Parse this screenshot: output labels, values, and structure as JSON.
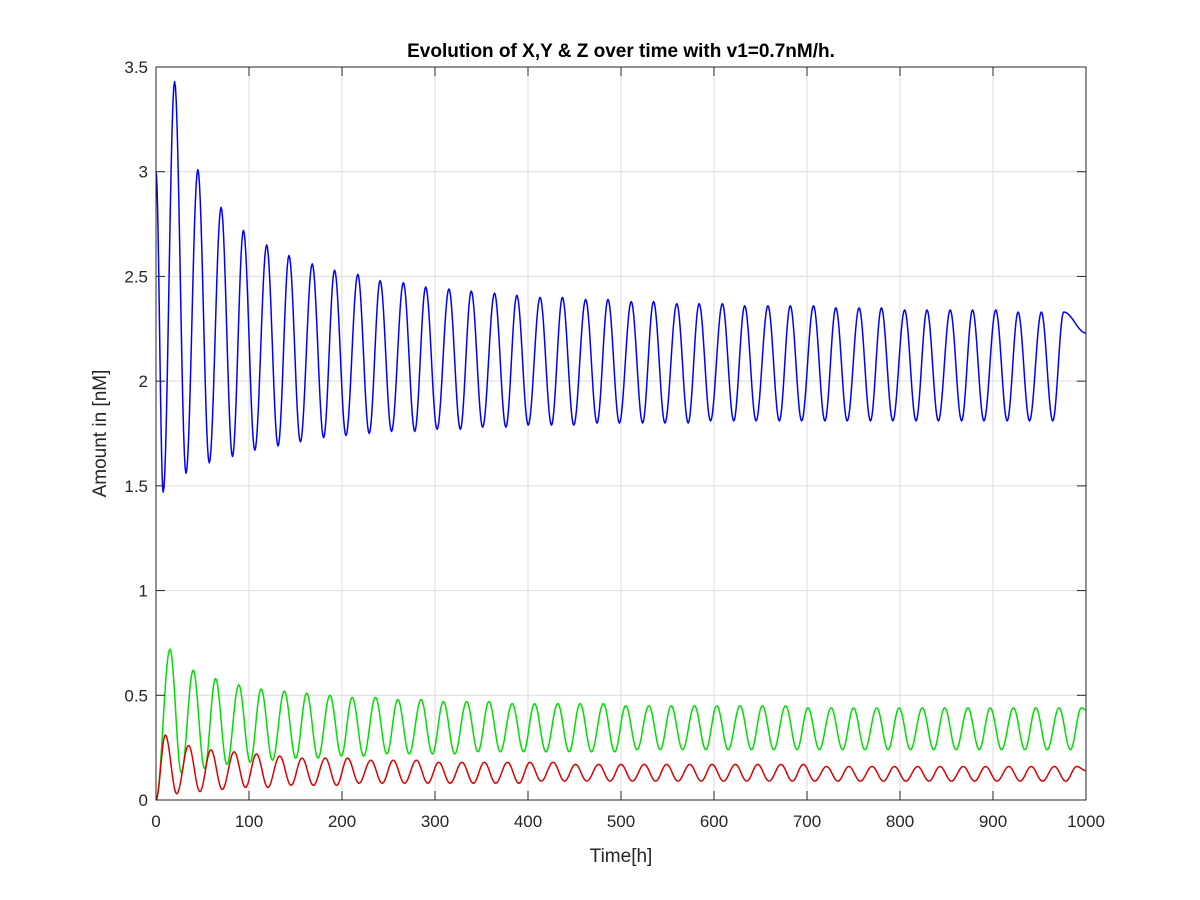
{
  "chart_data": {
    "type": "line",
    "title": "Evolution of X,Y & Z over time with v1=0.7nM/h.",
    "xlabel": "Time[h]",
    "ylabel": "Amount in [nM]",
    "xlim": [
      0,
      1000
    ],
    "ylim": [
      0,
      3.5
    ],
    "xticks": [
      0,
      100,
      200,
      300,
      400,
      500,
      600,
      700,
      800,
      900,
      1000
    ],
    "yticks": [
      0,
      0.5,
      1,
      1.5,
      2,
      2.5,
      3,
      3.5
    ],
    "xtick_labels": [
      "0",
      "100",
      "200",
      "300",
      "400",
      "500",
      "600",
      "700",
      "800",
      "900",
      "1000"
    ],
    "ytick_labels": [
      "0",
      "0.5",
      "1",
      "1.5",
      "2",
      "2.5",
      "3",
      "3.5"
    ],
    "grid": true,
    "legend": "none",
    "period_h": 24.5,
    "series": [
      {
        "color": "#0000ff",
        "start_value": 3.0,
        "first_min": 1.47,
        "peak_times": [
          20,
          45,
          70,
          94,
          119,
          143,
          168,
          192,
          217,
          241,
          266,
          290,
          315,
          339,
          364,
          388,
          413,
          437,
          462,
          486,
          511,
          535,
          560,
          584,
          609,
          633,
          658,
          682,
          707,
          731,
          756,
          780,
          805,
          829,
          854,
          878,
          903,
          927,
          952,
          976
        ],
        "peak_values": [
          3.43,
          3.01,
          2.83,
          2.72,
          2.65,
          2.6,
          2.56,
          2.53,
          2.51,
          2.48,
          2.47,
          2.45,
          2.44,
          2.43,
          2.42,
          2.41,
          2.4,
          2.4,
          2.39,
          2.39,
          2.38,
          2.38,
          2.37,
          2.37,
          2.37,
          2.36,
          2.36,
          2.36,
          2.36,
          2.35,
          2.35,
          2.35,
          2.34,
          2.34,
          2.34,
          2.34,
          2.34,
          2.33,
          2.33,
          2.33
        ],
        "trough_values": [
          1.56,
          1.61,
          1.64,
          1.67,
          1.69,
          1.71,
          1.73,
          1.74,
          1.75,
          1.76,
          1.76,
          1.77,
          1.77,
          1.78,
          1.78,
          1.79,
          1.79,
          1.79,
          1.8,
          1.8,
          1.8,
          1.8,
          1.8,
          1.81,
          1.81,
          1.81,
          1.81,
          1.81,
          1.81,
          1.81,
          1.81,
          1.81,
          1.81,
          1.81,
          1.81,
          1.81,
          1.81,
          1.81,
          1.81
        ],
        "end_value": 2.23
      },
      {
        "color": "#00dd00",
        "start_value": 0.0,
        "peak_times": [
          15,
          40,
          64,
          89,
          113,
          138,
          162,
          187,
          211,
          236,
          260,
          285,
          309,
          334,
          358,
          383,
          407,
          432,
          456,
          481,
          505,
          530,
          554,
          579,
          603,
          628,
          652,
          677,
          701,
          726,
          750,
          775,
          799,
          824,
          848,
          873,
          897,
          922,
          946,
          971,
          995
        ],
        "peak_values": [
          0.72,
          0.62,
          0.58,
          0.55,
          0.53,
          0.52,
          0.51,
          0.5,
          0.49,
          0.49,
          0.48,
          0.48,
          0.47,
          0.47,
          0.47,
          0.46,
          0.46,
          0.46,
          0.46,
          0.46,
          0.45,
          0.45,
          0.45,
          0.45,
          0.45,
          0.45,
          0.45,
          0.45,
          0.44,
          0.44,
          0.44,
          0.44,
          0.44,
          0.44,
          0.44,
          0.44,
          0.44,
          0.44,
          0.44,
          0.44,
          0.44
        ],
        "trough_values": [
          0.13,
          0.15,
          0.17,
          0.18,
          0.19,
          0.2,
          0.2,
          0.21,
          0.21,
          0.22,
          0.22,
          0.22,
          0.22,
          0.23,
          0.23,
          0.23,
          0.23,
          0.23,
          0.23,
          0.23,
          0.24,
          0.24,
          0.24,
          0.24,
          0.24,
          0.24,
          0.24,
          0.24,
          0.24,
          0.24,
          0.24,
          0.24,
          0.24,
          0.24,
          0.24,
          0.24,
          0.24,
          0.24,
          0.24,
          0.24
        ],
        "end_value": 0.43
      },
      {
        "color": "#dd0000",
        "start_value": 0.0,
        "peak_times": [
          10,
          35,
          59,
          84,
          108,
          133,
          157,
          182,
          206,
          231,
          255,
          280,
          304,
          329,
          353,
          378,
          402,
          427,
          451,
          476,
          500,
          525,
          549,
          574,
          598,
          623,
          647,
          672,
          696,
          721,
          745,
          770,
          794,
          819,
          843,
          868,
          892,
          917,
          941,
          966,
          990
        ],
        "peak_values": [
          0.31,
          0.26,
          0.24,
          0.23,
          0.22,
          0.21,
          0.2,
          0.2,
          0.2,
          0.19,
          0.19,
          0.19,
          0.18,
          0.18,
          0.18,
          0.18,
          0.18,
          0.18,
          0.17,
          0.17,
          0.17,
          0.17,
          0.17,
          0.17,
          0.17,
          0.17,
          0.17,
          0.17,
          0.17,
          0.16,
          0.16,
          0.16,
          0.16,
          0.16,
          0.16,
          0.16,
          0.16,
          0.16,
          0.16,
          0.16,
          0.16
        ],
        "trough_values": [
          0.03,
          0.04,
          0.05,
          0.06,
          0.06,
          0.07,
          0.07,
          0.07,
          0.08,
          0.08,
          0.08,
          0.08,
          0.08,
          0.08,
          0.08,
          0.08,
          0.09,
          0.09,
          0.09,
          0.09,
          0.09,
          0.09,
          0.09,
          0.09,
          0.09,
          0.09,
          0.09,
          0.09,
          0.09,
          0.09,
          0.09,
          0.09,
          0.09,
          0.09,
          0.09,
          0.09,
          0.09,
          0.09,
          0.09,
          0.09
        ],
        "end_value": 0.14
      }
    ]
  }
}
